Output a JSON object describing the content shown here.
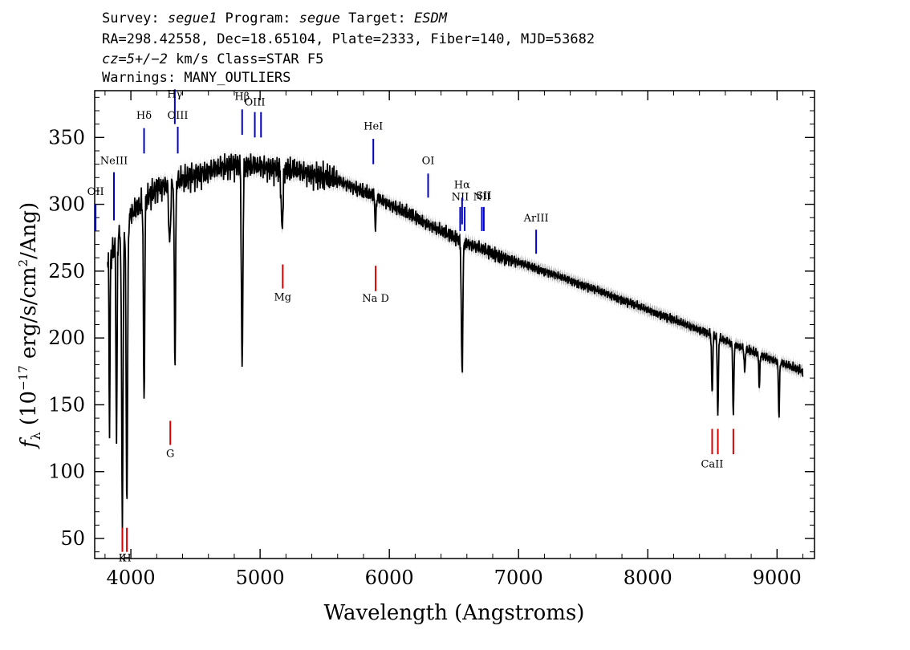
{
  "header": {
    "line1_parts": [
      {
        "text": "Survey: ",
        "italic": false
      },
      {
        "text": "segue1",
        "italic": true
      },
      {
        "text": " Program: ",
        "italic": false
      },
      {
        "text": "segue",
        "italic": true
      },
      {
        "text": " Target: ",
        "italic": false
      },
      {
        "text": "ESDM",
        "italic": true
      }
    ],
    "line2": "RA=298.42558, Dec=18.65104, Plate=2333, Fiber=140, MJD=53682",
    "line3_parts": [
      {
        "text": "cz=5+/−2",
        "italic": true
      },
      {
        "text": " km/s Class=STAR F5",
        "italic": false
      }
    ],
    "line4": "Warnings: MANY_OUTLIERS"
  },
  "chart_data": {
    "type": "line",
    "xlabel": "Wavelength (Angstroms)",
    "ylabel": "f_λ (10^-17 erg/s/cm^2/Ang)",
    "ylabel_parts": {
      "f": "f",
      "sub": "λ",
      "pre": " (10",
      "exp": "−17",
      "mid": " erg/s/cm",
      "exp2": "2",
      "post": "/Ang)"
    },
    "xlim": [
      3720,
      9290
    ],
    "ylim": [
      35,
      385
    ],
    "xticks": [
      4000,
      5000,
      6000,
      7000,
      8000,
      9000
    ],
    "yticks": [
      50,
      100,
      150,
      200,
      250,
      300,
      350
    ],
    "grid": false,
    "series": [
      {
        "color": "#000000",
        "x_range": [
          3820,
          9200
        ],
        "continuum": [
          [
            3820,
            255
          ],
          [
            3900,
            275
          ],
          [
            4000,
            292
          ],
          [
            4200,
            312
          ],
          [
            4500,
            322
          ],
          [
            4800,
            330
          ],
          [
            5000,
            328
          ],
          [
            5300,
            325
          ],
          [
            5600,
            318
          ],
          [
            5900,
            305
          ],
          [
            6200,
            290
          ],
          [
            6500,
            275
          ],
          [
            6800,
            263
          ],
          [
            7200,
            250
          ],
          [
            7600,
            236
          ],
          [
            8000,
            221
          ],
          [
            8400,
            206
          ],
          [
            8800,
            190
          ],
          [
            9200,
            175
          ]
        ],
        "absorptions": [
          {
            "center": 3835,
            "depth": 130,
            "width": 5
          },
          {
            "center": 3889,
            "depth": 150,
            "width": 6
          },
          {
            "center": 3934,
            "depth": 215,
            "width": 8
          },
          {
            "center": 3969,
            "depth": 210,
            "width": 8
          },
          {
            "center": 4102,
            "depth": 150,
            "width": 7
          },
          {
            "center": 4300,
            "depth": 45,
            "width": 10
          },
          {
            "center": 4341,
            "depth": 135,
            "width": 7
          },
          {
            "center": 4861,
            "depth": 155,
            "width": 8
          },
          {
            "center": 5170,
            "depth": 45,
            "width": 10
          },
          {
            "center": 5893,
            "depth": 25,
            "width": 6
          },
          {
            "center": 6563,
            "depth": 100,
            "width": 8
          },
          {
            "center": 8498,
            "depth": 45,
            "width": 6
          },
          {
            "center": 8542,
            "depth": 60,
            "width": 6
          },
          {
            "center": 8662,
            "depth": 55,
            "width": 6
          },
          {
            "center": 8750,
            "depth": 18,
            "width": 6
          },
          {
            "center": 8863,
            "depth": 25,
            "width": 6
          },
          {
            "center": 9015,
            "depth": 40,
            "width": 6
          }
        ]
      }
    ],
    "emission_lines": [
      {
        "label": "OII",
        "x": 3727,
        "y1": 280,
        "y2": 300,
        "label_y": 307
      },
      {
        "label": "NeIII",
        "x": 3869,
        "y1": 288,
        "y2": 324,
        "label_y": 330
      },
      {
        "label": "Hδ",
        "x": 4102,
        "y1": 338,
        "y2": 357,
        "label_y": 364
      },
      {
        "label": "Hγ",
        "x": 4340,
        "y1": 360,
        "y2": 386,
        "label_y": 380
      },
      {
        "label": "OIII",
        "x": 4363,
        "y1": 338,
        "y2": 358,
        "label_y": 364
      },
      {
        "label": "Hβ",
        "x": 4861,
        "y1": 352,
        "y2": 371,
        "label_y": 378
      },
      {
        "label": "OIII",
        "x": 4959,
        "y1": 350,
        "y2": 369,
        "label_y": 374
      },
      {
        "label": "",
        "x": 5007,
        "y1": 350,
        "y2": 369,
        "label_y": 374
      },
      {
        "label": "HeI",
        "x": 5876,
        "y1": 330,
        "y2": 349,
        "label_y": 356
      },
      {
        "label": "OI",
        "x": 6300,
        "y1": 305,
        "y2": 323,
        "label_y": 330
      },
      {
        "label": "NII",
        "x": 6548,
        "y1": 280,
        "y2": 298,
        "label_y": 303
      },
      {
        "label": "Hα",
        "x": 6563,
        "y1": 285,
        "y2": 305,
        "label_y": 312
      },
      {
        "label": "",
        "x": 6583,
        "y1": 280,
        "y2": 298,
        "label_y": 303
      },
      {
        "label": "NII",
        "x": 6716,
        "y1": 280,
        "y2": 298,
        "label_y": 303
      },
      {
        "label": "SII",
        "x": 6731,
        "y1": 280,
        "y2": 298,
        "label_y": 304
      },
      {
        "label": "ArIII",
        "x": 7136,
        "y1": 263,
        "y2": 281,
        "label_y": 287
      }
    ],
    "absorption_lines": [
      {
        "label": "K",
        "x": 3934,
        "y1": 40,
        "y2": 58,
        "label_y": 33
      },
      {
        "label": "H",
        "x": 3969,
        "y1": 40,
        "y2": 58,
        "label_y": 33
      },
      {
        "label": "G",
        "x": 4305,
        "y1": 120,
        "y2": 138,
        "label_y": 111
      },
      {
        "label": "Mg",
        "x": 5175,
        "y1": 237,
        "y2": 255,
        "label_y": 228
      },
      {
        "label": "Na D",
        "x": 5894,
        "y1": 235,
        "y2": 254,
        "label_y": 227
      },
      {
        "label": "CaII",
        "x": 8498,
        "y1": 113,
        "y2": 132,
        "label_y": 103
      },
      {
        "label": "",
        "x": 8542,
        "y1": 113,
        "y2": 132,
        "label_y": 103
      },
      {
        "label": "",
        "x": 8662,
        "y1": 113,
        "y2": 132,
        "label_y": 103
      }
    ],
    "colors": {
      "spectrum": "#000000",
      "error_band": "#b8b8b8",
      "emission_marker": "#0000cc",
      "absorption_marker": "#dd0000"
    }
  }
}
